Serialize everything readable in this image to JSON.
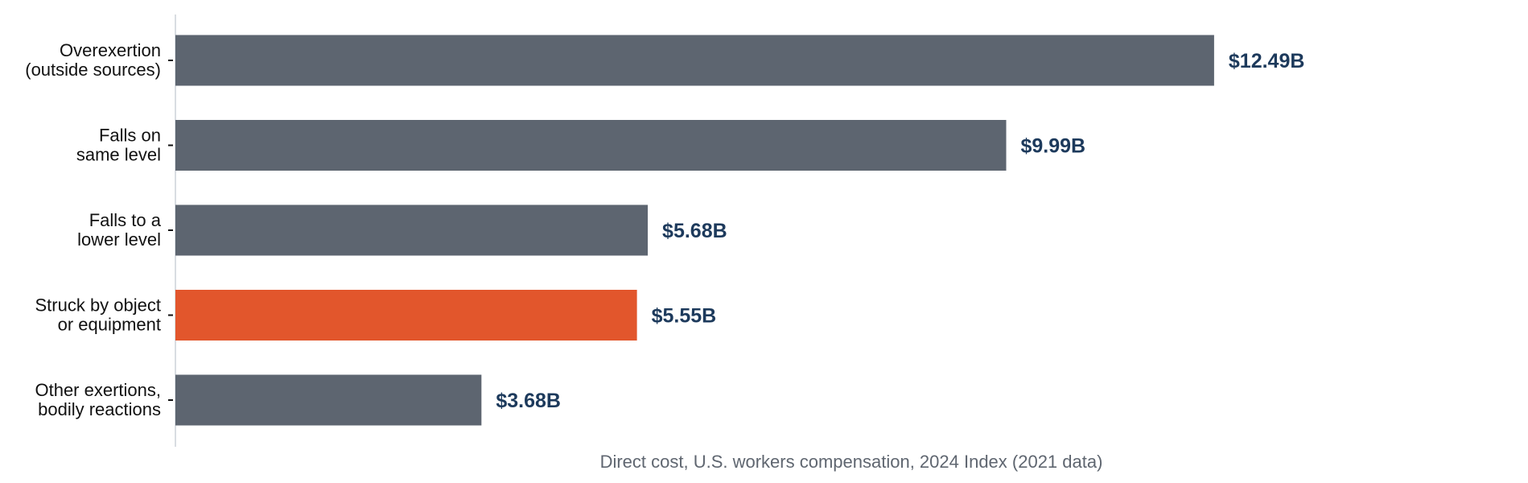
{
  "chart_data": {
    "type": "bar",
    "orientation": "horizontal",
    "categories": [
      [
        "Overexertion",
        "(outside sources)"
      ],
      [
        "Falls on",
        "same level"
      ],
      [
        "Falls to a",
        "lower level"
      ],
      [
        "Struck by object",
        "or equipment"
      ],
      [
        "Other exertions,",
        "bodily reactions"
      ]
    ],
    "values": [
      12.49,
      9.99,
      5.68,
      5.55,
      3.68
    ],
    "value_labels": [
      "$12.49B",
      "$9.99B",
      "$5.68B",
      "$5.55B",
      "$3.68B"
    ],
    "xlabel": "Direct cost, U.S. workers compensation, 2024 Index (2021 data)",
    "ylabel": "",
    "xlim": [
      0,
      16.1
    ],
    "grid": false,
    "colors": {
      "default_bar": "#5d6570",
      "highlight_bar": "#e2562c",
      "value_label": "#1d3a5c",
      "axis_line": "#d9dde2",
      "axis_title": "#5f6670"
    },
    "highlight_index": 3
  }
}
